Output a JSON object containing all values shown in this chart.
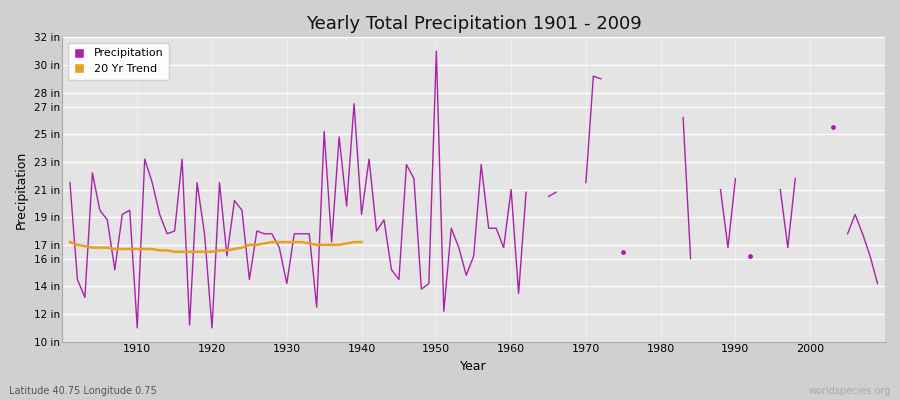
{
  "title": "Yearly Total Precipitation 1901 - 2009",
  "xlabel": "Year",
  "ylabel": "Precipitation",
  "subtitle_lat_lon": "Latitude 40.75 Longitude 0.75",
  "watermark": "worldspecies.org",
  "yticks": [
    10,
    12,
    14,
    16,
    17,
    19,
    21,
    23,
    25,
    27,
    28,
    30,
    32
  ],
  "ytick_labels": [
    "10 in",
    "12 in",
    "14 in",
    "16 in",
    "17 in",
    "19 in",
    "21 in",
    "23 in",
    "25 in",
    "27 in",
    "28 in",
    "30 in",
    "32 in"
  ],
  "precip_color": "#aa22aa",
  "trend_color": "#e8a020",
  "precip_data": {
    "1901": 21.5,
    "1902": 14.5,
    "1903": 13.2,
    "1904": 22.2,
    "1905": 19.5,
    "1906": 18.8,
    "1907": 15.2,
    "1908": 19.2,
    "1909": 19.5,
    "1910": 11.0,
    "1911": 23.2,
    "1912": 21.5,
    "1913": 19.2,
    "1914": 17.8,
    "1915": 18.0,
    "1916": 23.2,
    "1917": 11.2,
    "1918": 21.5,
    "1919": 17.8,
    "1920": 11.0,
    "1921": 21.5,
    "1922": 16.2,
    "1923": 20.2,
    "1924": 19.5,
    "1925": 14.5,
    "1926": 18.0,
    "1927": 17.8,
    "1928": 17.8,
    "1929": 16.8,
    "1930": 14.2,
    "1931": 17.8,
    "1932": 17.8,
    "1933": 17.8,
    "1934": 12.5,
    "1935": 25.2,
    "1936": 17.2,
    "1937": 24.8,
    "1938": 19.8,
    "1939": 27.2,
    "1940": 19.2,
    "1941": 23.2,
    "1942": 18.0,
    "1943": 18.8,
    "1944": 15.2,
    "1945": 14.5,
    "1946": 22.8,
    "1947": 21.8,
    "1948": 13.8,
    "1949": 14.2,
    "1950": 31.0,
    "1951": 12.2,
    "1952": 18.2,
    "1953": 16.8,
    "1954": 14.8,
    "1955": 16.2,
    "1956": 22.8,
    "1957": 18.2,
    "1958": 18.2,
    "1959": 16.8,
    "1960": 21.0,
    "1961": 13.5,
    "1962": 20.8,
    "1965": 20.5,
    "1966": 20.8,
    "1970": 21.5,
    "1971": 29.2,
    "1972": 29.0,
    "1975": 16.5,
    "1983": 26.2,
    "1984": 16.0,
    "1988": 21.0,
    "1989": 16.8,
    "1990": 21.8,
    "1992": 16.2,
    "1996": 21.0,
    "1997": 16.8,
    "1998": 21.8,
    "2003": 25.5,
    "2005": 17.8,
    "2006": 19.2,
    "2007": 17.8,
    "2008": 16.2,
    "2009": 14.2
  },
  "trend_data": {
    "1901": 17.2,
    "1902": 17.0,
    "1903": 16.9,
    "1904": 16.8,
    "1905": 16.8,
    "1906": 16.8,
    "1907": 16.7,
    "1908": 16.7,
    "1909": 16.7,
    "1910": 16.7,
    "1911": 16.7,
    "1912": 16.7,
    "1913": 16.6,
    "1914": 16.6,
    "1915": 16.5,
    "1916": 16.5,
    "1917": 16.5,
    "1918": 16.5,
    "1919": 16.5,
    "1920": 16.5,
    "1921": 16.6,
    "1922": 16.6,
    "1923": 16.7,
    "1924": 16.8,
    "1925": 17.0,
    "1926": 17.0,
    "1927": 17.1,
    "1928": 17.2,
    "1929": 17.2,
    "1930": 17.2,
    "1931": 17.2,
    "1932": 17.2,
    "1933": 17.1,
    "1934": 17.0,
    "1935": 17.0,
    "1936": 17.0,
    "1937": 17.0,
    "1938": 17.1,
    "1939": 17.2,
    "1940": 17.2
  }
}
